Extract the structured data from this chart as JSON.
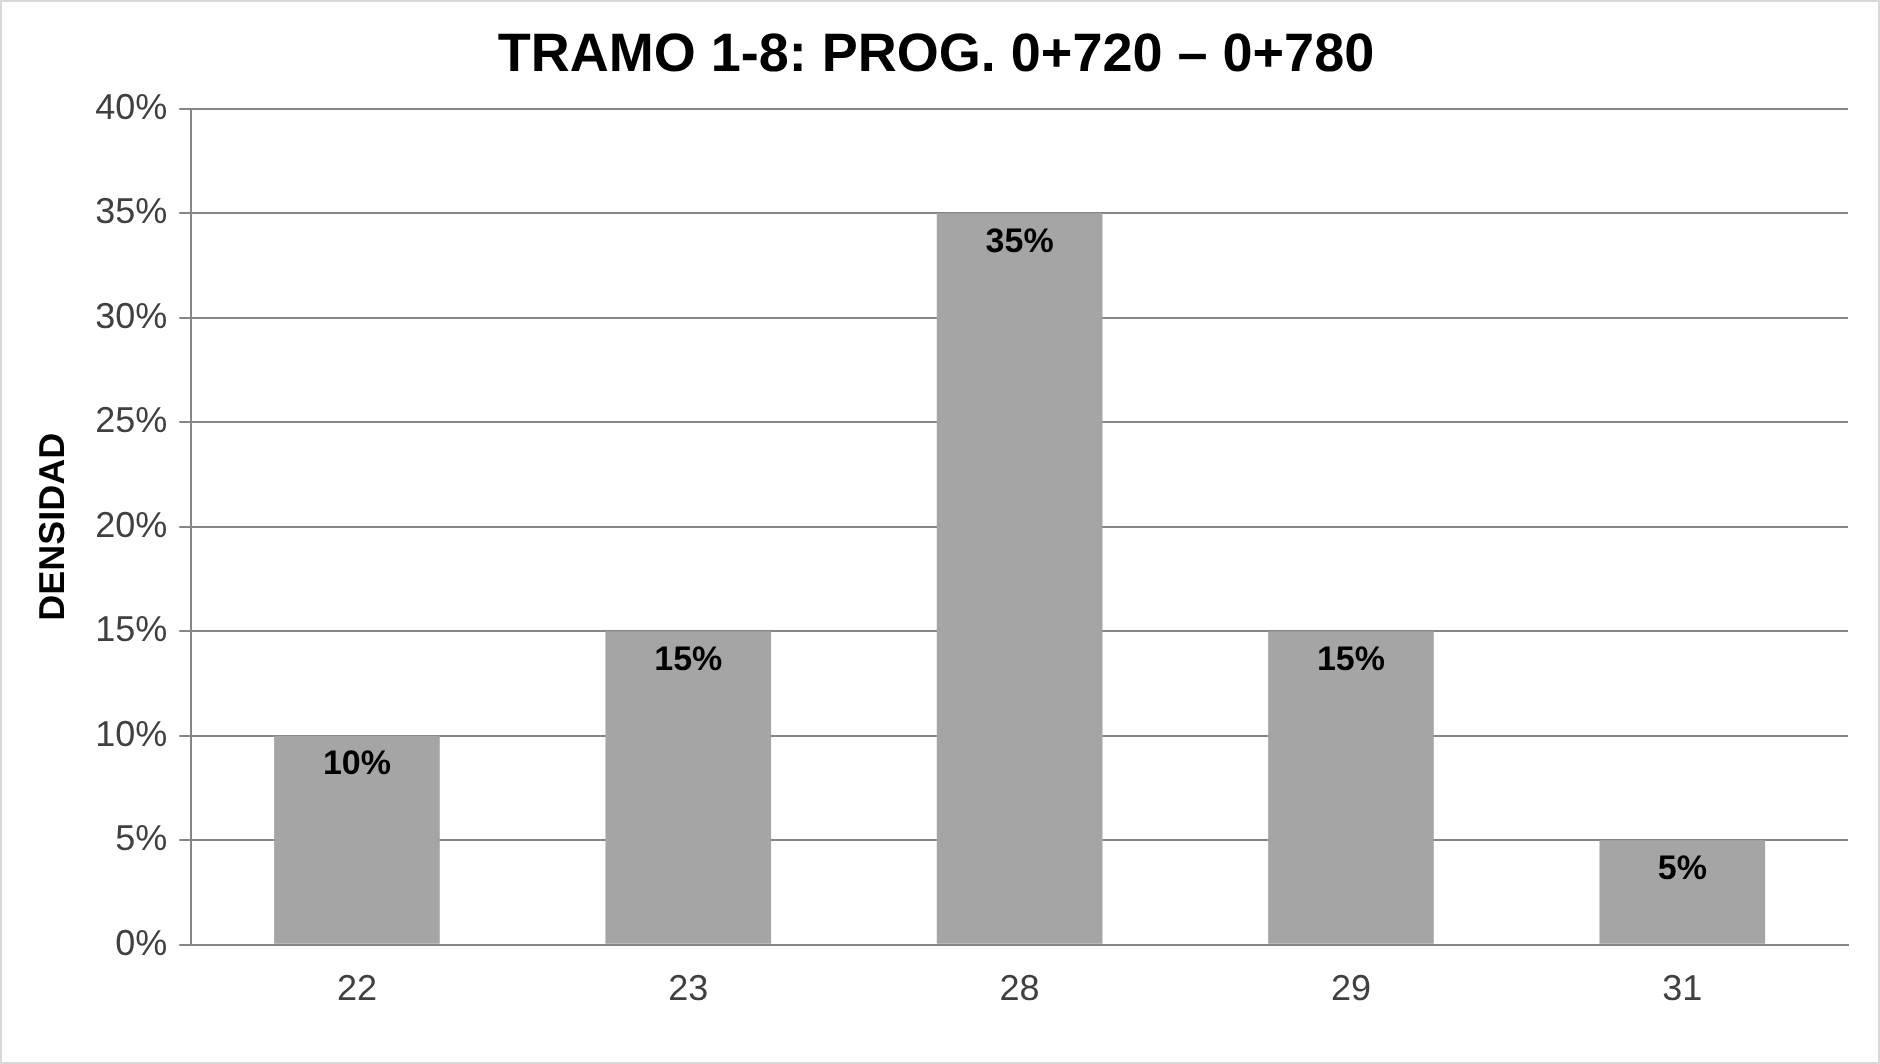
{
  "chart_data": {
    "type": "bar",
    "title": "TRAMO 1-8: PROG. 0+720 – 0+780",
    "ylabel": "DENSIDAD",
    "categories": [
      "22",
      "23",
      "28",
      "29",
      "31"
    ],
    "values": [
      10,
      15,
      35,
      15,
      5
    ],
    "value_labels": [
      "10%",
      "15%",
      "35%",
      "15%",
      "5%"
    ],
    "color": "#a5a5a5",
    "ylim": [
      0,
      40
    ],
    "yticks": [
      {
        "value": 0,
        "label": "0%"
      },
      {
        "value": 5,
        "label": "5%"
      },
      {
        "value": 10,
        "label": "10%"
      },
      {
        "value": 15,
        "label": "15%"
      },
      {
        "value": 20,
        "label": "20%"
      },
      {
        "value": 25,
        "label": "25%"
      },
      {
        "value": 30,
        "label": "30%"
      },
      {
        "value": 35,
        "label": "35%"
      },
      {
        "value": 40,
        "label": "40%"
      }
    ],
    "grid": "y",
    "legend": false
  }
}
